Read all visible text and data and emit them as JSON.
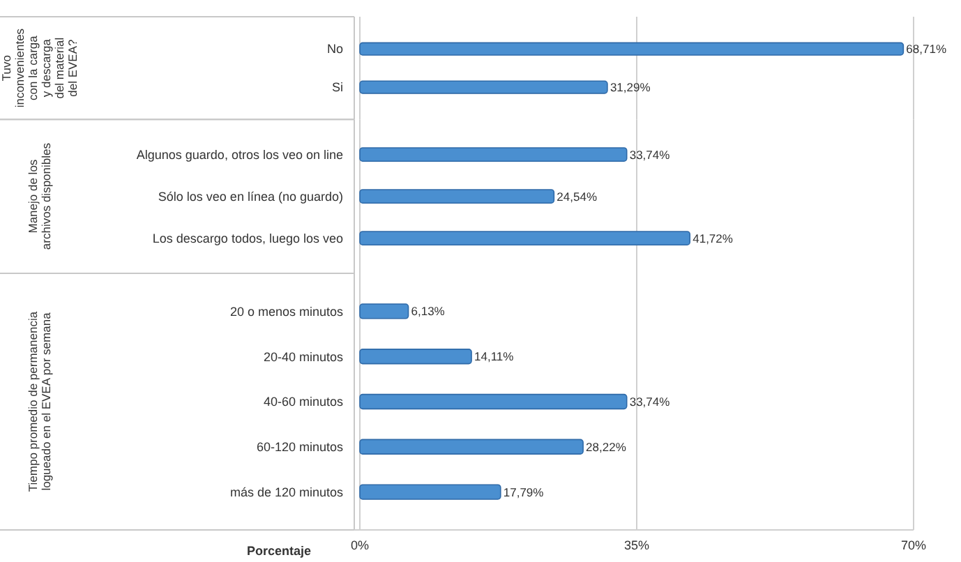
{
  "chart_data": [
    {
      "type": "bar",
      "orientation": "horizontal",
      "ylabel": "Tuvo inconvenientes con la carga y descarga del material del EVEA?",
      "categories": [
        "No",
        "Si"
      ],
      "values": [
        68.71,
        31.29
      ],
      "value_labels": [
        "68,71%",
        "31,29%"
      ],
      "color": "#4a8fd0",
      "xlim": [
        0,
        70
      ],
      "xticks": [
        {
          "value": 0,
          "label": null
        },
        {
          "value": 35,
          "label": null
        },
        {
          "value": 70,
          "label": null
        }
      ],
      "grid": "x",
      "tick_labels": "y"
    },
    {
      "type": "bar",
      "orientation": "horizontal",
      "ylabel": "Manejo de los archivos disponibles",
      "categories": [
        "Algunos guardo, otros los veo on line",
        "Sólo los veo en línea (no guardo)",
        "Los descargo todos, luego los veo"
      ],
      "values": [
        33.74,
        24.54,
        41.72
      ],
      "value_labels": [
        "33,74%",
        "24,54%",
        "41,72%"
      ],
      "color": "#4a8fd0",
      "xlim": [
        0,
        70
      ],
      "xticks": [
        {
          "value": 0,
          "label": null
        },
        {
          "value": 35,
          "label": null
        },
        {
          "value": 70,
          "label": null
        }
      ],
      "grid": "x",
      "tick_labels": "y"
    },
    {
      "type": "bar",
      "orientation": "horizontal",
      "ylabel": "Tiempo promedio de permanencia logueado en el EVEA por semana",
      "xlabel": "Porcentaje",
      "categories": [
        "20 o menos minutos",
        "20-40 minutos",
        "40-60 minutos",
        "60-120 minutos",
        "más de 120 minutos"
      ],
      "values": [
        6.13,
        14.11,
        33.74,
        28.22,
        17.79
      ],
      "value_labels": [
        "6,13%",
        "14,11%",
        "33,74%",
        "28,22%",
        "17,79%"
      ],
      "color": "#4a8fd0",
      "xlim": [
        0,
        70
      ],
      "xticks": [
        {
          "value": 0,
          "label": "0%"
        },
        {
          "value": 35,
          "label": "35%"
        },
        {
          "value": 70,
          "label": "70%"
        }
      ],
      "grid": "x"
    }
  ]
}
